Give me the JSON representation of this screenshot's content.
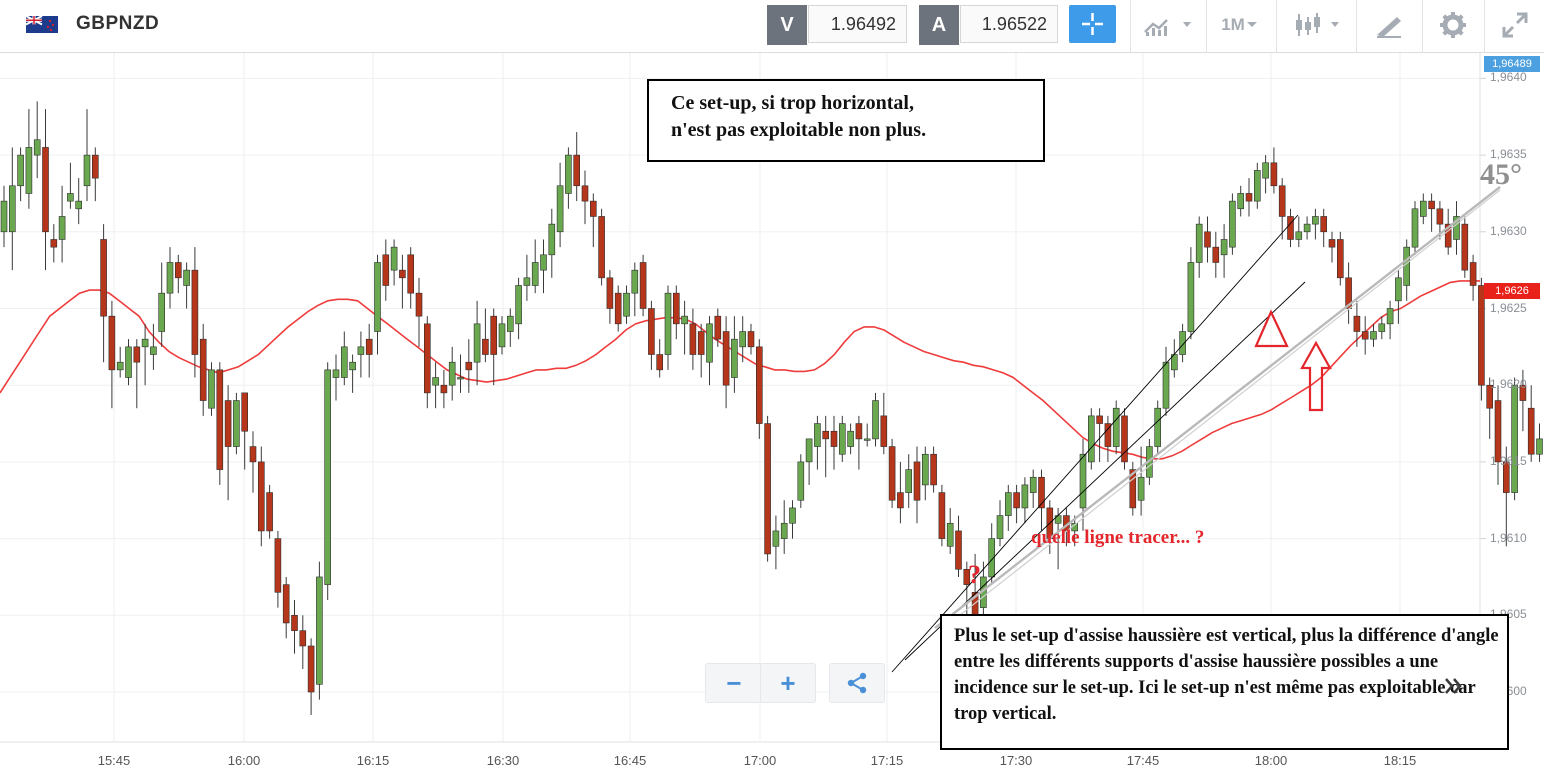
{
  "header": {
    "symbol": "GBPNZD",
    "sell_label": "V",
    "sell_price": "1.96492",
    "buy_label": "A",
    "buy_price": "1.96522",
    "timeframe": "1M",
    "icons": [
      "flag-gb-nz-icon",
      "crosshair-icon",
      "chart-type-icon",
      "candles-icon",
      "draw-icon",
      "gear-icon",
      "expand-icon"
    ]
  },
  "price_tags": {
    "bid": "1,96489",
    "ma": "1,9626"
  },
  "zoom": {
    "minus": "−",
    "plus": "+"
  },
  "annotations": {
    "box1": [
      "Ce set-up, si  trop horizontal,",
      "n'est pas exploitable non plus."
    ],
    "box2": "Plus le set-up d'assise haussière est vertical, plus la différence d'angle entre les différents supports d'assise haussière possibles a une incidence sur le set-up. Ici le set-up n'est même pas exploitable car trop vertical.",
    "question_text": "quelle ligne tracer... ?",
    "question_mark": "?",
    "angle": "45°"
  },
  "colors": {
    "up": "#6aa84f",
    "down": "#b5361b",
    "ma": "#ef3b3b",
    "accent": "#3d9be9",
    "arrow": "#e3262b"
  },
  "chart_data": {
    "type": "candlestick",
    "ylim": [
      1.95975,
      1.96422
    ],
    "yticks": [
      "1,9600",
      "1,9605",
      "1,9610",
      "1,9615",
      "1,9620",
      "1,9625",
      "1,9630",
      "1,9635",
      "1,9640"
    ],
    "xticks": [
      "15:45",
      "16:00",
      "16:15",
      "16:30",
      "16:45",
      "17:00",
      "17:15",
      "17:30",
      "17:45",
      "18:00",
      "18:15"
    ],
    "candles": [
      [
        1.963,
        1.9632,
        1.9629,
        1.9633
      ],
      [
        1.963,
        1.9633,
        1.96275,
        1.96355
      ],
      [
        1.9633,
        1.9635,
        1.9632,
        1.96355
      ],
      [
        1.96325,
        1.96355,
        1.96315,
        1.9638
      ],
      [
        1.9635,
        1.9636,
        1.96335,
        1.96385
      ],
      [
        1.96355,
        1.963,
        1.96275,
        1.9638
      ],
      [
        1.96295,
        1.9629,
        1.9628,
        1.96305
      ],
      [
        1.96295,
        1.9631,
        1.9628,
        1.9633
      ],
      [
        1.9632,
        1.96325,
        1.96315,
        1.96345
      ],
      [
        1.96315,
        1.9632,
        1.96305,
        1.96335
      ],
      [
        1.9633,
        1.9635,
        1.9632,
        1.9638
      ],
      [
        1.9635,
        1.96335,
        1.9632,
        1.96355
      ],
      [
        1.96295,
        1.96245,
        1.96215,
        1.96305
      ],
      [
        1.96245,
        1.9621,
        1.96185,
        1.96255
      ],
      [
        1.9621,
        1.96215,
        1.96205,
        1.96225
      ],
      [
        1.96205,
        1.96225,
        1.962,
        1.9623
      ],
      [
        1.96225,
        1.96215,
        1.96185,
        1.9623
      ],
      [
        1.96225,
        1.9623,
        1.962,
        1.9624
      ],
      [
        1.9622,
        1.96225,
        1.9621,
        1.9624
      ],
      [
        1.96235,
        1.9626,
        1.96225,
        1.9628
      ],
      [
        1.9626,
        1.9628,
        1.9625,
        1.9629
      ],
      [
        1.9628,
        1.9627,
        1.9626,
        1.96285
      ],
      [
        1.96265,
        1.96275,
        1.9625,
        1.9628
      ],
      [
        1.96275,
        1.9622,
        1.96205,
        1.9629
      ],
      [
        1.9623,
        1.9619,
        1.9618,
        1.9624
      ],
      [
        1.96185,
        1.9621,
        1.9618,
        1.96215
      ],
      [
        1.9621,
        1.96145,
        1.96135,
        1.96215
      ],
      [
        1.9619,
        1.9616,
        1.96125,
        1.962
      ],
      [
        1.9616,
        1.9619,
        1.96155,
        1.96195
      ],
      [
        1.96195,
        1.9617,
        1.96145,
        1.96195
      ],
      [
        1.9616,
        1.9615,
        1.9613,
        1.9617
      ],
      [
        1.9615,
        1.96105,
        1.96095,
        1.9616
      ],
      [
        1.9613,
        1.96105,
        1.961,
        1.96135
      ],
      [
        1.961,
        1.96065,
        1.96055,
        1.96105
      ],
      [
        1.9607,
        1.96045,
        1.96035,
        1.96075
      ],
      [
        1.9605,
        1.9604,
        1.96025,
        1.9606
      ],
      [
        1.9604,
        1.9603,
        1.96015,
        1.9605
      ],
      [
        1.9603,
        1.96,
        1.95985,
        1.96035
      ],
      [
        1.96005,
        1.96075,
        1.95995,
        1.96085
      ],
      [
        1.9607,
        1.9621,
        1.9606,
        1.96215
      ],
      [
        1.96205,
        1.9621,
        1.9619,
        1.9622
      ],
      [
        1.96205,
        1.96225,
        1.962,
        1.96235
      ],
      [
        1.9621,
        1.96215,
        1.96195,
        1.9622
      ],
      [
        1.9622,
        1.96225,
        1.96205,
        1.96235
      ],
      [
        1.9623,
        1.9622,
        1.96205,
        1.9624
      ],
      [
        1.96235,
        1.9628,
        1.9622,
        1.96285
      ],
      [
        1.96285,
        1.96265,
        1.96255,
        1.96295
      ],
      [
        1.96275,
        1.9629,
        1.96265,
        1.96295
      ],
      [
        1.96275,
        1.9627,
        1.9625,
        1.96285
      ],
      [
        1.96285,
        1.9626,
        1.9625,
        1.9629
      ],
      [
        1.9626,
        1.96245,
        1.96225,
        1.9627
      ],
      [
        1.9624,
        1.96195,
        1.96185,
        1.96245
      ],
      [
        1.962,
        1.96205,
        1.96185,
        1.96215
      ],
      [
        1.962,
        1.96195,
        1.96185,
        1.9621
      ],
      [
        1.962,
        1.96215,
        1.9619,
        1.96225
      ],
      [
        1.96205,
        1.96205,
        1.96195,
        1.9622
      ],
      [
        1.96215,
        1.9621,
        1.96195,
        1.9623
      ],
      [
        1.96215,
        1.9624,
        1.962,
        1.96255
      ],
      [
        1.9623,
        1.9622,
        1.96215,
        1.9625
      ],
      [
        1.96245,
        1.9622,
        1.962,
        1.9625
      ],
      [
        1.96225,
        1.9624,
        1.9622,
        1.96245
      ],
      [
        1.96235,
        1.96245,
        1.96225,
        1.9625
      ],
      [
        1.9624,
        1.96265,
        1.9623,
        1.9627
      ],
      [
        1.96265,
        1.9627,
        1.96255,
        1.96285
      ],
      [
        1.96265,
        1.9628,
        1.9626,
        1.96295
      ],
      [
        1.96275,
        1.96285,
        1.9626,
        1.96295
      ],
      [
        1.96285,
        1.96305,
        1.9627,
        1.96315
      ],
      [
        1.963,
        1.9633,
        1.9629,
        1.96345
      ],
      [
        1.96325,
        1.9635,
        1.96315,
        1.96355
      ],
      [
        1.9635,
        1.9633,
        1.9632,
        1.96365
      ],
      [
        1.9633,
        1.9632,
        1.96305,
        1.9634
      ],
      [
        1.9632,
        1.9631,
        1.9629,
        1.96325
      ],
      [
        1.9631,
        1.9627,
        1.96265,
        1.96315
      ],
      [
        1.9627,
        1.9625,
        1.9624,
        1.96275
      ],
      [
        1.9626,
        1.9624,
        1.96235,
        1.96265
      ],
      [
        1.96245,
        1.9626,
        1.9624,
        1.96265
      ],
      [
        1.9626,
        1.96275,
        1.96245,
        1.9628
      ],
      [
        1.9628,
        1.9625,
        1.96245,
        1.96285
      ],
      [
        1.9625,
        1.9622,
        1.9621,
        1.96255
      ],
      [
        1.9622,
        1.9621,
        1.96205,
        1.9623
      ],
      [
        1.9622,
        1.9626,
        1.9621,
        1.96265
      ],
      [
        1.9626,
        1.9624,
        1.9623,
        1.96265
      ],
      [
        1.9624,
        1.96245,
        1.9622,
        1.96255
      ],
      [
        1.9624,
        1.9622,
        1.9621,
        1.9625
      ],
      [
        1.96235,
        1.9622,
        1.96205,
        1.9624
      ],
      [
        1.96215,
        1.9624,
        1.962,
        1.96245
      ],
      [
        1.96245,
        1.9623,
        1.96225,
        1.9625
      ],
      [
        1.96235,
        1.962,
        1.96185,
        1.96245
      ],
      [
        1.96205,
        1.9623,
        1.96195,
        1.96245
      ],
      [
        1.96225,
        1.96235,
        1.96215,
        1.96245
      ],
      [
        1.96235,
        1.96225,
        1.9622,
        1.9624
      ],
      [
        1.96225,
        1.96175,
        1.96165,
        1.9623
      ],
      [
        1.96175,
        1.9609,
        1.96085,
        1.9618
      ],
      [
        1.96095,
        1.96105,
        1.9608,
        1.96115
      ],
      [
        1.961,
        1.9611,
        1.9609,
        1.96125
      ],
      [
        1.9611,
        1.9612,
        1.961,
        1.96125
      ],
      [
        1.96125,
        1.9615,
        1.9612,
        1.96155
      ],
      [
        1.9615,
        1.96165,
        1.96135,
        1.96165
      ],
      [
        1.9616,
        1.96175,
        1.96145,
        1.9618
      ],
      [
        1.9617,
        1.96165,
        1.9614,
        1.9618
      ],
      [
        1.9617,
        1.9616,
        1.96145,
        1.9618
      ],
      [
        1.96155,
        1.96175,
        1.9615,
        1.9618
      ],
      [
        1.9616,
        1.9617,
        1.96155,
        1.96175
      ],
      [
        1.96175,
        1.96165,
        1.96145,
        1.9618
      ],
      [
        1.96165,
        1.96165,
        1.9616,
        1.96175
      ],
      [
        1.96165,
        1.9619,
        1.9616,
        1.96195
      ],
      [
        1.9618,
        1.9616,
        1.96155,
        1.96195
      ],
      [
        1.9616,
        1.96125,
        1.9612,
        1.96165
      ],
      [
        1.9613,
        1.9612,
        1.9611,
        1.9615
      ],
      [
        1.9613,
        1.96145,
        1.9612,
        1.96155
      ],
      [
        1.9615,
        1.96125,
        1.9611,
        1.9616
      ],
      [
        1.96135,
        1.96155,
        1.96125,
        1.9616
      ],
      [
        1.96155,
        1.96135,
        1.9613,
        1.9616
      ],
      [
        1.9613,
        1.961,
        1.96095,
        1.96135
      ],
      [
        1.96095,
        1.9611,
        1.9609,
        1.9612
      ],
      [
        1.96105,
        1.9608,
        1.96075,
        1.96115
      ],
      [
        1.9608,
        1.9607,
        1.96045,
        1.96085
      ],
      [
        1.96065,
        1.9605,
        1.96045,
        1.9609
      ],
      [
        1.96055,
        1.96075,
        1.9605,
        1.96085
      ],
      [
        1.96075,
        1.961,
        1.9607,
        1.9611
      ],
      [
        1.961,
        1.96115,
        1.96095,
        1.96125
      ],
      [
        1.96115,
        1.9613,
        1.96105,
        1.96135
      ],
      [
        1.9613,
        1.9612,
        1.9611,
        1.96135
      ],
      [
        1.9612,
        1.96135,
        1.9611,
        1.9614
      ],
      [
        1.9613,
        1.9614,
        1.9612,
        1.96145
      ],
      [
        1.9614,
        1.9612,
        1.96105,
        1.96145
      ],
      [
        1.9612,
        1.961,
        1.9609,
        1.96125
      ],
      [
        1.9611,
        1.96115,
        1.9608,
        1.9612
      ],
      [
        1.96115,
        1.96105,
        1.96095,
        1.9612
      ],
      [
        1.96105,
        1.9611,
        1.96095,
        1.96115
      ],
      [
        1.9612,
        1.96155,
        1.96105,
        1.96165
      ],
      [
        1.9615,
        1.9618,
        1.96145,
        1.96185
      ],
      [
        1.9618,
        1.96175,
        1.9615,
        1.96185
      ],
      [
        1.96175,
        1.9616,
        1.9615,
        1.9618
      ],
      [
        1.9616,
        1.96185,
        1.96155,
        1.9619
      ],
      [
        1.9618,
        1.9615,
        1.96145,
        1.96185
      ],
      [
        1.96145,
        1.9612,
        1.96115,
        1.9615
      ],
      [
        1.96125,
        1.9614,
        1.96115,
        1.9616
      ],
      [
        1.9614,
        1.9616,
        1.96135,
        1.96165
      ],
      [
        1.9616,
        1.96185,
        1.96155,
        1.9619
      ],
      [
        1.96185,
        1.96215,
        1.9618,
        1.96225
      ],
      [
        1.9621,
        1.9622,
        1.96205,
        1.9623
      ],
      [
        1.9622,
        1.96235,
        1.96215,
        1.9624
      ],
      [
        1.96235,
        1.9628,
        1.9623,
        1.9629
      ],
      [
        1.9628,
        1.96305,
        1.9627,
        1.9631
      ],
      [
        1.963,
        1.9629,
        1.9628,
        1.9631
      ],
      [
        1.9629,
        1.9628,
        1.9627,
        1.963
      ],
      [
        1.96285,
        1.96295,
        1.9627,
        1.96305
      ],
      [
        1.9629,
        1.9632,
        1.96285,
        1.96325
      ],
      [
        1.96315,
        1.96325,
        1.9631,
        1.9633
      ],
      [
        1.96325,
        1.9632,
        1.9631,
        1.96335
      ],
      [
        1.9632,
        1.9634,
        1.96315,
        1.96345
      ],
      [
        1.96335,
        1.96345,
        1.96325,
        1.9635
      ],
      [
        1.96345,
        1.9633,
        1.96325,
        1.96355
      ],
      [
        1.9633,
        1.9631,
        1.96295,
        1.96335
      ],
      [
        1.9631,
        1.96295,
        1.9629,
        1.96315
      ],
      [
        1.96295,
        1.963,
        1.9629,
        1.9631
      ],
      [
        1.963,
        1.96305,
        1.96295,
        1.9631
      ],
      [
        1.96305,
        1.9631,
        1.96295,
        1.96315
      ],
      [
        1.9631,
        1.963,
        1.9629,
        1.96315
      ],
      [
        1.96295,
        1.9629,
        1.9628,
        1.963
      ],
      [
        1.96295,
        1.9627,
        1.96265,
        1.963
      ],
      [
        1.9627,
        1.9625,
        1.9624,
        1.9628
      ],
      [
        1.96245,
        1.96235,
        1.96225,
        1.96255
      ],
      [
        1.96235,
        1.9623,
        1.9622,
        1.96245
      ],
      [
        1.9623,
        1.96235,
        1.96225,
        1.9624
      ],
      [
        1.96235,
        1.9624,
        1.9623,
        1.96245
      ],
      [
        1.9624,
        1.9625,
        1.9623,
        1.96255
      ],
      [
        1.96255,
        1.9627,
        1.9624,
        1.96275
      ],
      [
        1.96265,
        1.9629,
        1.96255,
        1.96295
      ],
      [
        1.9629,
        1.96315,
        1.96285,
        1.9632
      ],
      [
        1.9631,
        1.9632,
        1.96305,
        1.96325
      ],
      [
        1.9632,
        1.96315,
        1.963,
        1.96325
      ],
      [
        1.96315,
        1.96305,
        1.96295,
        1.9632
      ],
      [
        1.96305,
        1.9629,
        1.96285,
        1.96315
      ],
      [
        1.96295,
        1.9631,
        1.96285,
        1.9632
      ],
      [
        1.96305,
        1.96275,
        1.9627,
        1.9631
      ],
      [
        1.9628,
        1.96265,
        1.96255,
        1.96285
      ],
      [
        1.96265,
        1.962,
        1.9619,
        1.9627
      ],
      [
        1.962,
        1.96185,
        1.96165,
        1.96205
      ],
      [
        1.9619,
        1.9615,
        1.96135,
        1.962
      ],
      [
        1.9615,
        1.9613,
        1.96095,
        1.9616
      ],
      [
        1.9613,
        1.962,
        1.96125,
        1.96205
      ],
      [
        1.962,
        1.9619,
        1.9617,
        1.9621
      ],
      [
        1.96185,
        1.96155,
        1.9615,
        1.962
      ],
      [
        1.96155,
        1.96165,
        1.9615,
        1.96175
      ],
      [
        1.9616,
        1.9618,
        1.96155,
        1.962
      ],
      [
        1.96185,
        1.9622,
        1.9618,
        1.96225
      ]
    ],
    "ma_series": [
      1.96195,
      1.96205,
      1.96215,
      1.96225,
      1.96235,
      1.96245,
      1.9625,
      1.96255,
      1.9626,
      1.96262,
      1.96262,
      1.9626,
      1.96255,
      1.9625,
      1.96245,
      1.96235,
      1.96228,
      1.96222,
      1.96218,
      1.96215,
      1.96212,
      1.9621,
      1.96208,
      1.9621,
      1.96212,
      1.96216,
      1.9622,
      1.96226,
      1.96232,
      1.96238,
      1.96243,
      1.96248,
      1.96252,
      1.96255,
      1.96256,
      1.96256,
      1.96255,
      1.9625,
      1.96245,
      1.9624,
      1.96235,
      1.9623,
      1.96225,
      1.9622,
      1.96215,
      1.9621,
      1.96207,
      1.96204,
      1.96203,
      1.96202,
      1.96203,
      1.96204,
      1.96206,
      1.96208,
      1.9621,
      1.9621,
      1.96211,
      1.96211,
      1.96213,
      1.96216,
      1.9622,
      1.96225,
      1.9623,
      1.96236,
      1.9624,
      1.96242,
      1.96243,
      1.96244,
      1.96244,
      1.96243,
      1.9624,
      1.96235,
      1.9623,
      1.96226,
      1.96222,
      1.96218,
      1.96214,
      1.96212,
      1.9621,
      1.9621,
      1.96209,
      1.96209,
      1.9621,
      1.96214,
      1.9622,
      1.96228,
      1.96235,
      1.96238,
      1.96238,
      1.96236,
      1.96232,
      1.96228,
      1.96225,
      1.96222,
      1.9622,
      1.96218,
      1.96216,
      1.96215,
      1.96213,
      1.96212,
      1.9621,
      1.96208,
      1.96205,
      1.962,
      1.96195,
      1.9619,
      1.96184,
      1.96178,
      1.96172,
      1.96166,
      1.96162,
      1.96159,
      1.96157,
      1.96156,
      1.96155,
      1.96153,
      1.96152,
      1.96152,
      1.96154,
      1.96157,
      1.96161,
      1.96165,
      1.96169,
      1.96172,
      1.96175,
      1.96177,
      1.96179,
      1.96181,
      1.96184,
      1.96188,
      1.96192,
      1.96196,
      1.962,
      1.96205,
      1.96212,
      1.96219,
      1.96226,
      1.96232,
      1.96238,
      1.96244,
      1.96248,
      1.9625,
      1.96254,
      1.96258,
      1.96261,
      1.96264,
      1.96267,
      1.96268,
      1.96268,
      1.96268
    ]
  }
}
